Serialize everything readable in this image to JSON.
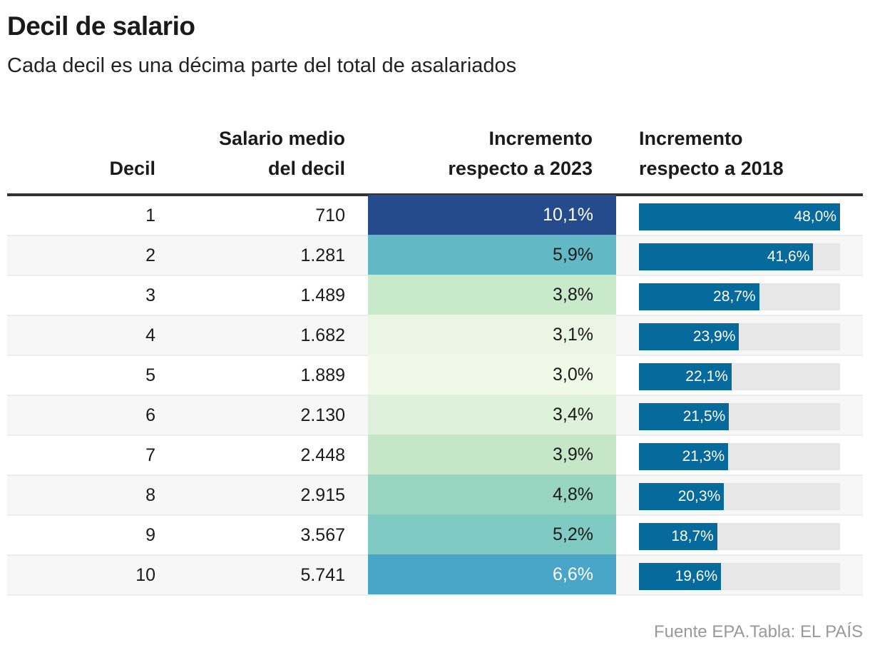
{
  "title": "Decil de salario",
  "subtitle": "Cada decil es una décima parte del total de asalariados",
  "source": "Fuente EPA.Tabla: EL PAÍS",
  "colors": {
    "bar": "#066a9c",
    "track": "#e7e7e7"
  },
  "chart_data": {
    "type": "table",
    "headers": {
      "decil": "Decil",
      "salario_1": "Salario medio",
      "salario_2": "del decil",
      "inc2023_1": "Incremento",
      "inc2023_2": "respecto a 2023",
      "inc2018_1": "Incremento",
      "inc2018_2": "respecto a 2018"
    },
    "rows": [
      {
        "decil": "1",
        "salario": "710",
        "inc2023": "10,1%",
        "inc2018": "48,0%",
        "v2018": 48.0,
        "heat": "#264b8c",
        "light": true
      },
      {
        "decil": "2",
        "salario": "1.281",
        "inc2023": "5,9%",
        "inc2018": "41,6%",
        "v2018": 41.6,
        "heat": "#63b8c6",
        "light": false
      },
      {
        "decil": "3",
        "salario": "1.489",
        "inc2023": "3,8%",
        "inc2018": "28,7%",
        "v2018": 28.7,
        "heat": "#c9e9cb",
        "light": false
      },
      {
        "decil": "4",
        "salario": "1.682",
        "inc2023": "3,1%",
        "inc2018": "23,9%",
        "v2018": 23.9,
        "heat": "#ebf5e4",
        "light": false
      },
      {
        "decil": "5",
        "salario": "1.889",
        "inc2023": "3,0%",
        "inc2018": "22,1%",
        "v2018": 22.1,
        "heat": "#f0f8e8",
        "light": false
      },
      {
        "decil": "6",
        "salario": "2.130",
        "inc2023": "3,4%",
        "inc2018": "21,5%",
        "v2018": 21.5,
        "heat": "#ddf1db",
        "light": false
      },
      {
        "decil": "7",
        "salario": "2.448",
        "inc2023": "3,9%",
        "inc2018": "21,3%",
        "v2018": 21.3,
        "heat": "#c5e7c7",
        "light": false
      },
      {
        "decil": "8",
        "salario": "2.915",
        "inc2023": "4,8%",
        "inc2018": "20,3%",
        "v2018": 20.3,
        "heat": "#98d5c0",
        "light": false
      },
      {
        "decil": "9",
        "salario": "3.567",
        "inc2023": "5,2%",
        "inc2018": "18,7%",
        "v2018": 18.7,
        "heat": "#7fcbc3",
        "light": false
      },
      {
        "decil": "10",
        "salario": "5.741",
        "inc2023": "6,6%",
        "inc2018": "19,6%",
        "v2018": 19.6,
        "heat": "#4aa6c9",
        "light": true
      }
    ],
    "bar_max": 48.0
  }
}
